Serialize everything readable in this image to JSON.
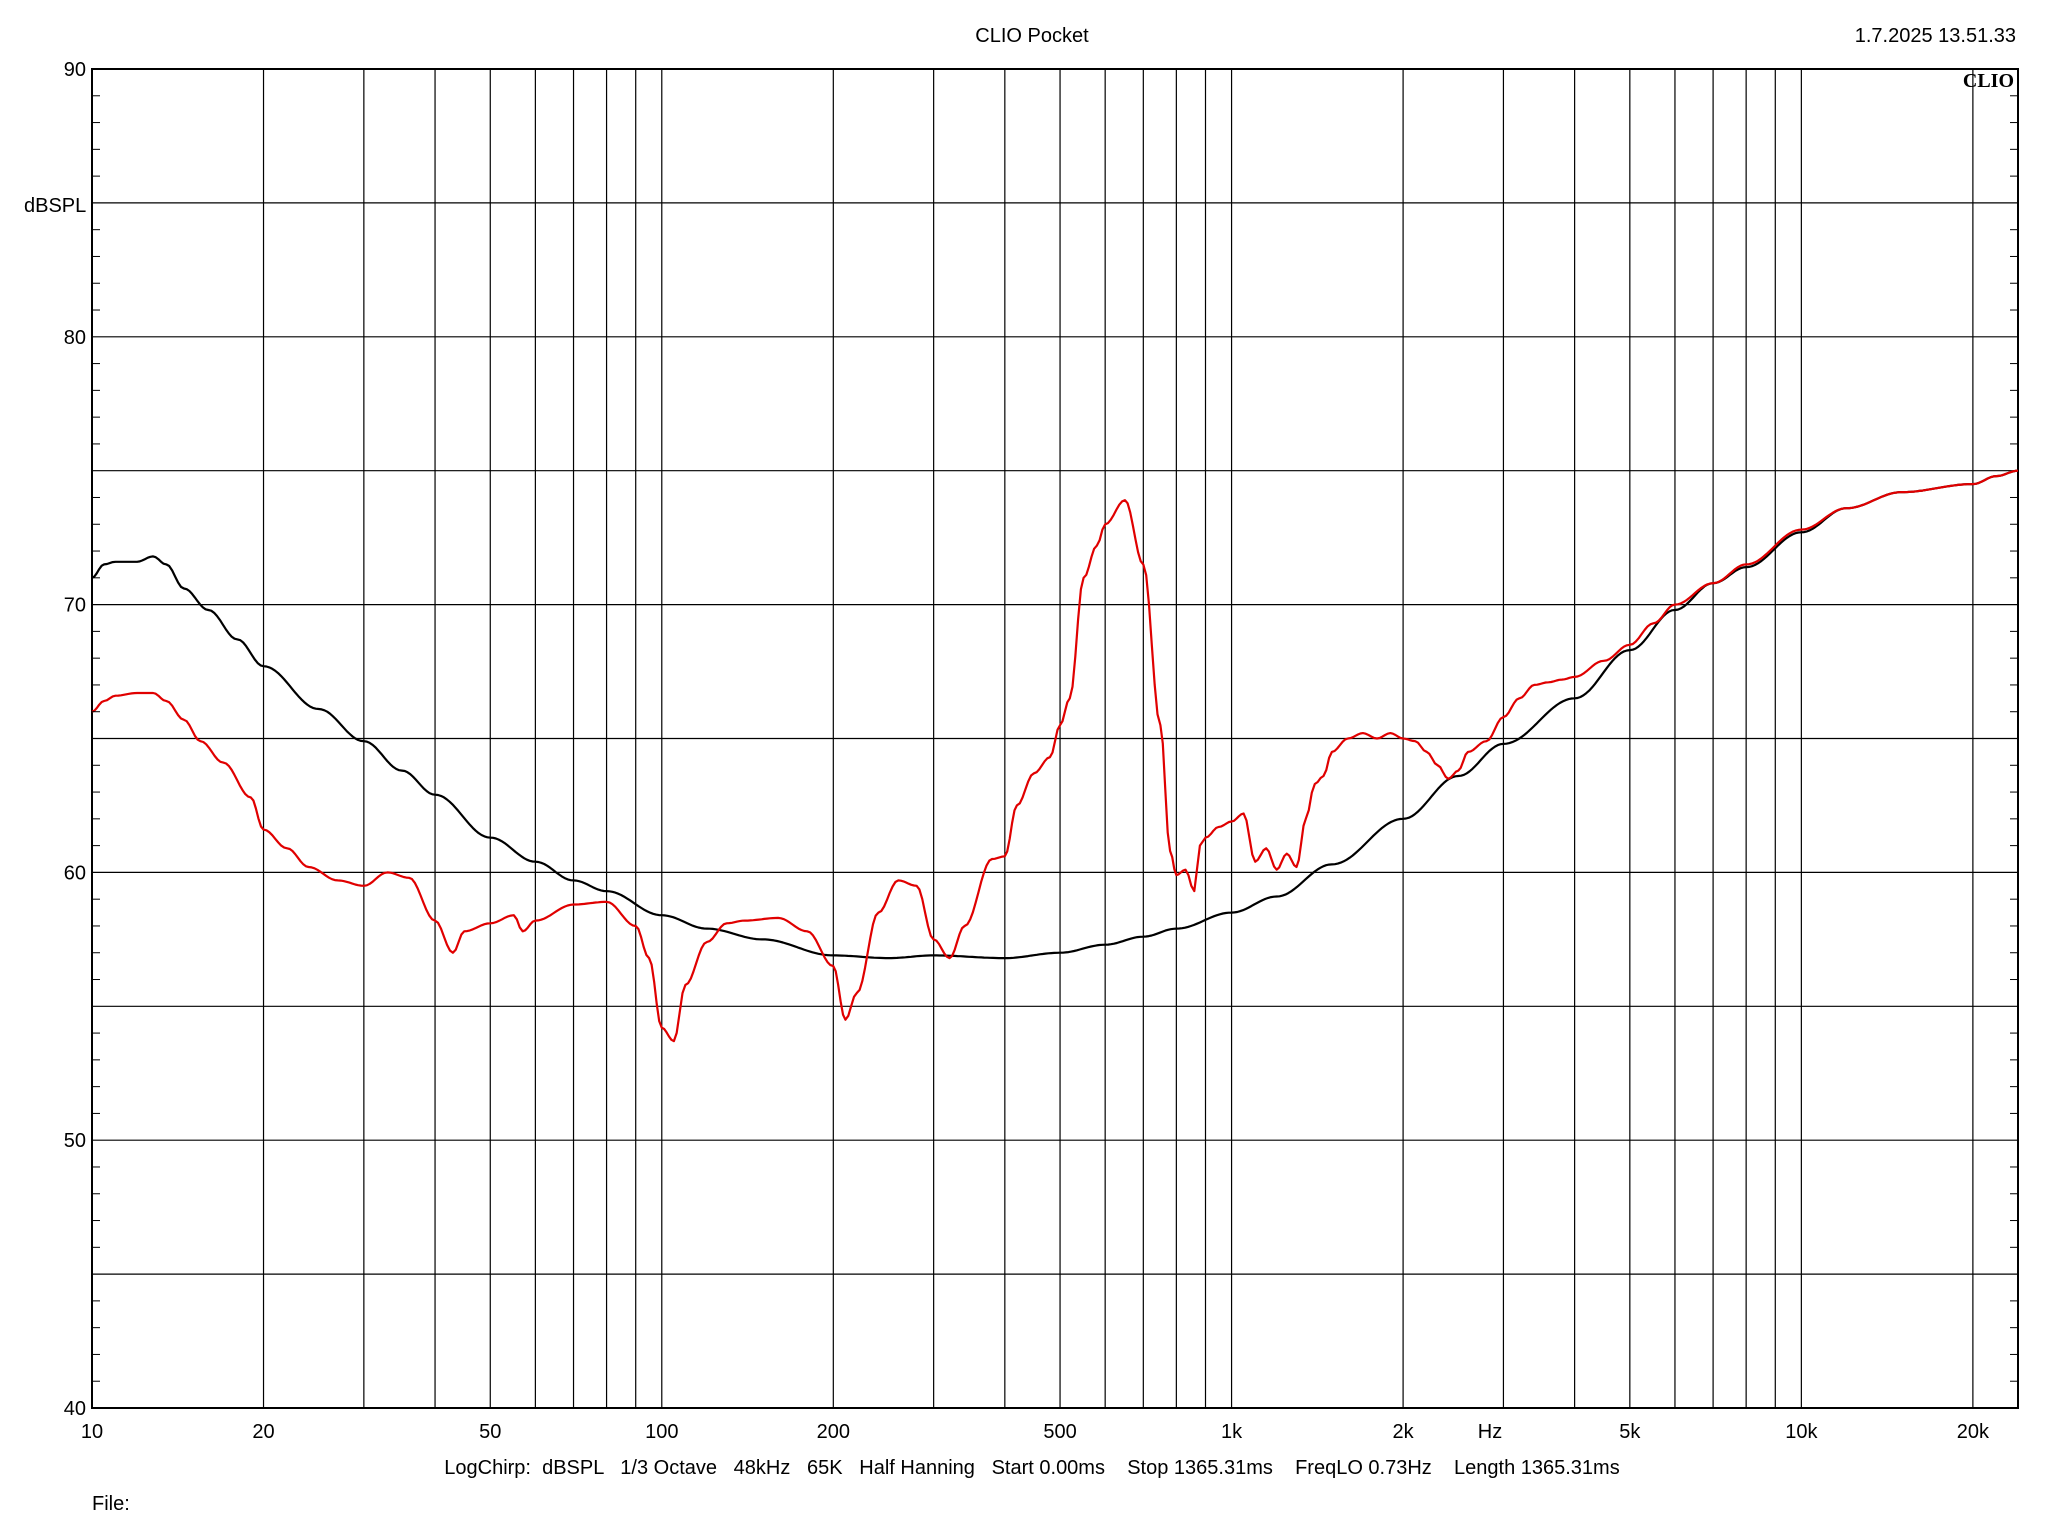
{
  "header": {
    "title": "CLIO Pocket",
    "timestamp": "1.7.2025 13.51.33",
    "logo": "CLIO"
  },
  "footer": {
    "settings": "LogChirp:  dBSPL   1/3 Octave   48kHz   65K   Half Hanning   Start 0.00ms    Stop 1365.31ms    FreqLO 0.73Hz    Length 1365.31ms",
    "file_label": "File:"
  },
  "chart_data": {
    "type": "line",
    "xscale": "log",
    "xlim": [
      10,
      24000
    ],
    "ylim": [
      40,
      90
    ],
    "ylabel": "dBSPL",
    "xunit": "Hz",
    "grid": true,
    "x_ticks": [
      {
        "value": 10,
        "label": "10"
      },
      {
        "value": 20,
        "label": "20"
      },
      {
        "value": 50,
        "label": "50"
      },
      {
        "value": 100,
        "label": "100"
      },
      {
        "value": 200,
        "label": "200"
      },
      {
        "value": 500,
        "label": "500"
      },
      {
        "value": 1000,
        "label": "1k"
      },
      {
        "value": 2000,
        "label": "2k"
      },
      {
        "value": 5000,
        "label": "5k"
      },
      {
        "value": 10000,
        "label": "10k"
      },
      {
        "value": 20000,
        "label": "20k"
      }
    ],
    "y_ticks": [
      {
        "value": 40,
        "label": "40"
      },
      {
        "value": 50,
        "label": "50"
      },
      {
        "value": 60,
        "label": "60"
      },
      {
        "value": 70,
        "label": "70"
      },
      {
        "value": 80,
        "label": "80"
      },
      {
        "value": 90,
        "label": "90"
      }
    ],
    "series": [
      {
        "color": "#000000",
        "x": [
          10,
          10.5,
          11,
          12,
          12.8,
          13.5,
          14.5,
          16,
          18,
          20,
          25,
          30,
          35,
          40,
          50,
          60,
          70,
          80,
          100,
          120,
          150,
          200,
          250,
          300,
          400,
          500,
          600,
          700,
          800,
          1000,
          1200,
          1500,
          2000,
          2500,
          3000,
          4000,
          5000,
          6000,
          7000,
          8000,
          10000,
          12000,
          15000,
          20000,
          22000,
          24000
        ],
        "y": [
          71.0,
          71.5,
          71.6,
          71.6,
          71.8,
          71.5,
          70.6,
          69.8,
          68.7,
          67.7,
          66.1,
          64.9,
          63.8,
          62.9,
          61.3,
          60.4,
          59.7,
          59.3,
          58.4,
          57.9,
          57.5,
          56.9,
          56.8,
          56.9,
          56.8,
          57.0,
          57.3,
          57.6,
          57.9,
          58.5,
          59.1,
          60.3,
          62.0,
          63.6,
          64.8,
          66.5,
          68.3,
          69.8,
          70.8,
          71.4,
          72.7,
          73.6,
          74.2,
          74.5,
          74.8,
          75.0
        ]
      },
      {
        "color": "#e00000",
        "x": [
          10,
          10.5,
          11,
          12,
          12.8,
          13.5,
          14.5,
          15.5,
          17,
          19,
          20,
          22,
          24,
          27,
          30,
          33,
          36,
          40,
          43,
          45,
          50,
          55,
          57,
          60,
          70,
          80,
          90,
          95,
          100,
          105,
          110,
          120,
          130,
          140,
          160,
          180,
          200,
          210,
          220,
          240,
          260,
          280,
          300,
          320,
          340,
          380,
          400,
          420,
          450,
          480,
          500,
          520,
          550,
          580,
          600,
          650,
          700,
          750,
          780,
          800,
          830,
          860,
          880,
          900,
          950,
          1000,
          1050,
          1100,
          1150,
          1200,
          1250,
          1300,
          1350,
          1400,
          1450,
          1500,
          1600,
          1700,
          1800,
          1900,
          2000,
          2100,
          2200,
          2300,
          2400,
          2500,
          2600,
          2800,
          3000,
          3200,
          3400,
          3600,
          3800,
          4000,
          4500,
          5000,
          5500,
          6000,
          7000,
          8000,
          10000,
          12000,
          15000,
          20000,
          22000,
          24000
        ],
        "y": [
          66.0,
          66.4,
          66.6,
          66.7,
          66.7,
          66.4,
          65.7,
          64.9,
          64.1,
          62.8,
          61.6,
          60.9,
          60.2,
          59.7,
          59.5,
          60.0,
          59.8,
          58.2,
          57.0,
          57.8,
          58.1,
          58.4,
          57.8,
          58.2,
          58.8,
          58.9,
          58.0,
          56.8,
          54.2,
          53.7,
          55.8,
          57.4,
          58.1,
          58.2,
          58.3,
          57.8,
          56.5,
          54.5,
          55.5,
          58.5,
          59.7,
          59.5,
          57.5,
          56.8,
          58.0,
          60.5,
          60.6,
          62.5,
          63.7,
          64.3,
          65.5,
          66.5,
          71.0,
          72.2,
          73.0,
          73.9,
          71.5,
          65.5,
          60.8,
          59.9,
          60.1,
          59.3,
          61.0,
          61.3,
          61.7,
          61.9,
          62.2,
          60.4,
          60.9,
          60.1,
          60.7,
          60.2,
          62.0,
          63.3,
          63.6,
          64.5,
          65.0,
          65.2,
          65.0,
          65.2,
          65.0,
          64.9,
          64.5,
          64.0,
          63.5,
          63.8,
          64.5,
          64.9,
          65.8,
          66.5,
          67.0,
          67.1,
          67.2,
          67.3,
          67.9,
          68.5,
          69.3,
          70.0,
          70.8,
          71.5,
          72.8,
          73.6,
          74.2,
          74.5,
          74.8,
          75.0
        ]
      }
    ]
  }
}
